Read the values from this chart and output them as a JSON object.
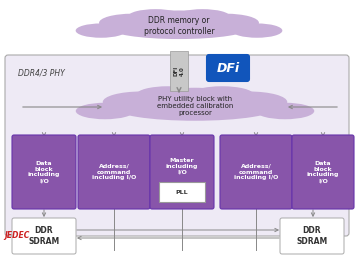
{
  "cloud_top_label": "DDR memory or\nprotocol controller",
  "cloud_mid_label": "PHY utility block with\nembedded calibration\nprocessor",
  "dfi_label": "DFI\n4.0",
  "dfi_logo": "DFi",
  "outer_box_label": "DDR4/3 PHY",
  "jedec_label": "JEDEC",
  "block_labels": [
    "Data\nblock\nincluding\nI/O",
    "Address/\ncommand\nincluding I/O",
    "Master\nincluding\nI/O",
    "Address/\ncommand\nincluding I/O",
    "Data\nblock\nincluding\nI/O"
  ],
  "block_color": "#8855AA",
  "cloud_color": "#C8B0D8",
  "outer_box_facecolor": "#EEEAF5",
  "outer_box_edgecolor": "#AAAAAA",
  "ddr_box_edgecolor": "#AAAAAA",
  "arrow_color": "#888888",
  "dfi_box_color": "#C0C0C0",
  "dfi_logo_color": "#1155BB",
  "background_color": "#FFFFFF",
  "jedec_color": "#CC2222"
}
